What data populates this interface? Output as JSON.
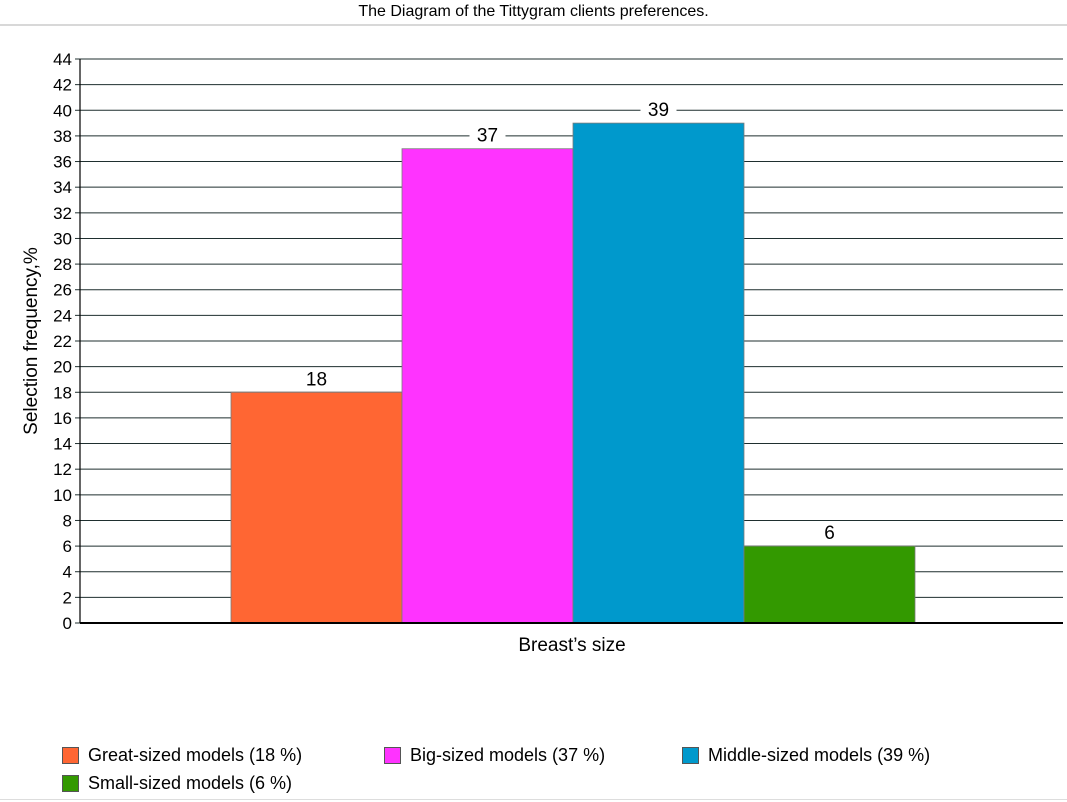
{
  "chart_data": {
    "type": "bar",
    "title": "The Diagram of  the Tittygram clients preferences.",
    "xlabel": "Breast’s size",
    "ylabel": "Selection frequency,%",
    "ylim": [
      0,
      44
    ],
    "ytick_step": 2,
    "grid": true,
    "legend_position": "bottom",
    "series": [
      {
        "name": "Great-sized models (18 %)",
        "value": 18,
        "label": "18",
        "color": "#ff6633"
      },
      {
        "name": "Big-sized models (37 %)",
        "value": 37,
        "label": "37",
        "color": "#ff33ff"
      },
      {
        "name": "Middle-sized models (39 %)",
        "value": 39,
        "label": "39",
        "color": "#0099cc"
      },
      {
        "name": "Small-sized models (6 %)",
        "value": 6,
        "label": "6",
        "color": "#339900"
      }
    ]
  }
}
